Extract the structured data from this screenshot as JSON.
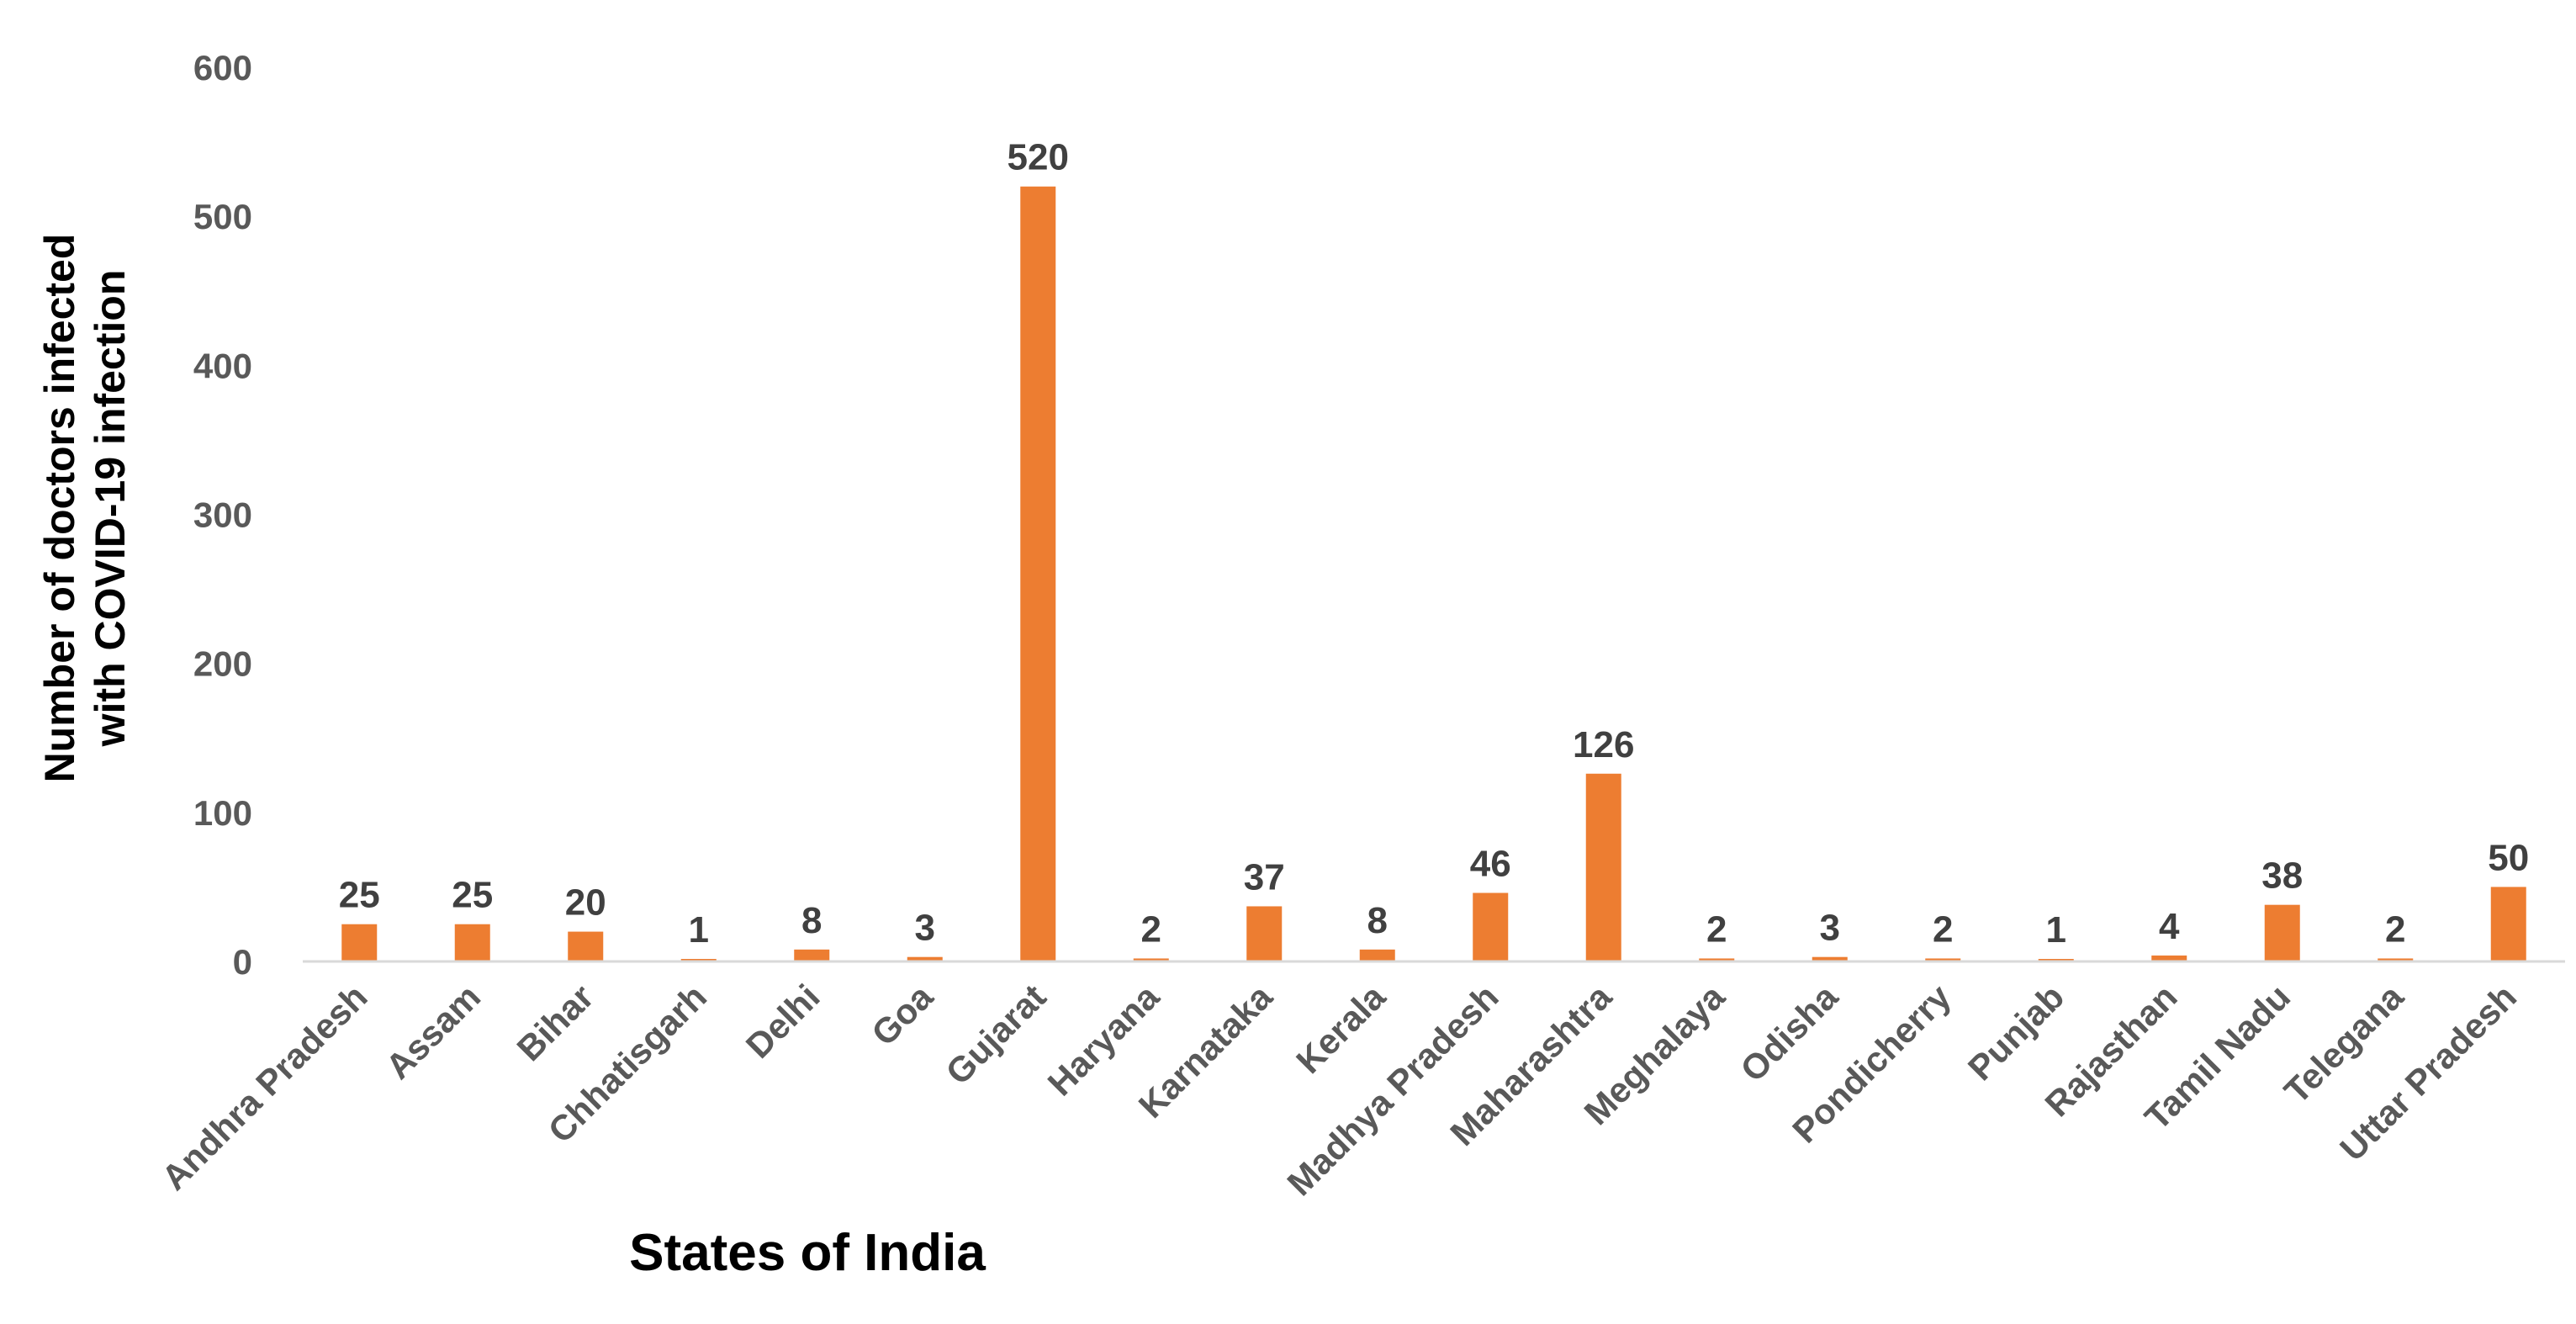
{
  "chart_data": {
    "type": "bar",
    "title": "",
    "xlabel": "States of India",
    "ylabel_lines": [
      "Number of doctors infected",
      "with COVID-19 infection"
    ],
    "ylim": [
      0,
      600
    ],
    "yticks": [
      0,
      100,
      200,
      300,
      400,
      500,
      600
    ],
    "gridlines": false,
    "legend": "none",
    "bar_color": "#ED7D31",
    "categories": [
      "Andhra Pradesh",
      "Assam",
      "Bihar",
      "Chhatisgarh",
      "Delhi",
      "Goa",
      "Gujarat",
      "Haryana",
      "Karnataka",
      "Kerala",
      "Madhya Pradesh",
      "Maharashtra",
      "Meghalaya",
      "Odisha",
      "Pondicherry",
      "Punjab",
      "Rajasthan",
      "Tamil Nadu",
      "Telegana",
      "Uttar Pradesh"
    ],
    "values": [
      25,
      25,
      20,
      1,
      8,
      3,
      520,
      2,
      37,
      8,
      46,
      126,
      2,
      3,
      2,
      1,
      4,
      38,
      2,
      50
    ]
  }
}
